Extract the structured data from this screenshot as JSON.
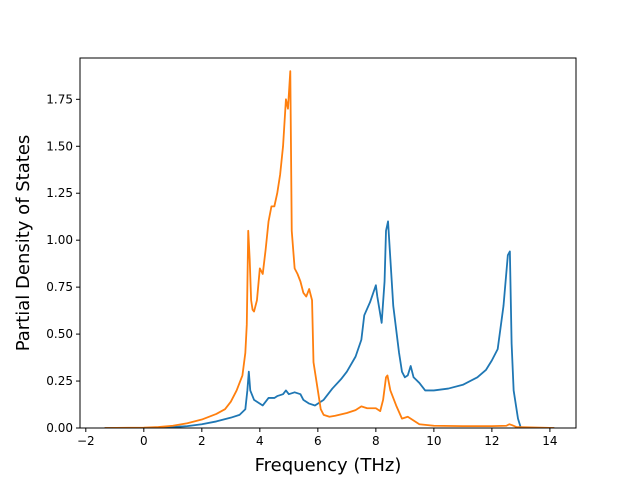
{
  "chart_data": {
    "type": "line",
    "title": "",
    "xlabel": "Frequency (THz)",
    "ylabel": "Partial Density of States",
    "xlim": [
      -2.2,
      14.9
    ],
    "ylim": [
      0,
      1.97
    ],
    "grid": false,
    "xticks": [
      -2,
      0,
      2,
      4,
      6,
      8,
      10,
      12,
      14
    ],
    "xtick_labels": [
      "−2",
      "0",
      "2",
      "4",
      "6",
      "8",
      "10",
      "12",
      "14"
    ],
    "yticks": [
      0,
      0.25,
      0.5,
      0.75,
      1.0,
      1.25,
      1.5,
      1.75
    ],
    "ytick_labels": [
      "0.00",
      "0.25",
      "0.50",
      "0.75",
      "1.00",
      "1.25",
      "1.50",
      "1.75"
    ],
    "series": [
      {
        "color": "#1f77b4",
        "points": [
          [
            -1.35,
            0.0
          ],
          [
            0.0,
            0.0
          ],
          [
            1.0,
            0.005
          ],
          [
            1.5,
            0.01
          ],
          [
            2.0,
            0.02
          ],
          [
            2.5,
            0.035
          ],
          [
            3.0,
            0.055
          ],
          [
            3.3,
            0.07
          ],
          [
            3.5,
            0.1
          ],
          [
            3.57,
            0.2
          ],
          [
            3.62,
            0.3
          ],
          [
            3.67,
            0.2
          ],
          [
            3.8,
            0.15
          ],
          [
            4.0,
            0.13
          ],
          [
            4.1,
            0.12
          ],
          [
            4.2,
            0.14
          ],
          [
            4.3,
            0.16
          ],
          [
            4.5,
            0.16
          ],
          [
            4.6,
            0.17
          ],
          [
            4.8,
            0.18
          ],
          [
            4.9,
            0.2
          ],
          [
            5.0,
            0.18
          ],
          [
            5.2,
            0.19
          ],
          [
            5.4,
            0.18
          ],
          [
            5.5,
            0.15
          ],
          [
            5.7,
            0.13
          ],
          [
            5.9,
            0.12
          ],
          [
            6.0,
            0.13
          ],
          [
            6.2,
            0.15
          ],
          [
            6.5,
            0.21
          ],
          [
            6.8,
            0.26
          ],
          [
            7.0,
            0.3
          ],
          [
            7.3,
            0.38
          ],
          [
            7.5,
            0.47
          ],
          [
            7.6,
            0.6
          ],
          [
            7.8,
            0.67
          ],
          [
            8.0,
            0.76
          ],
          [
            8.05,
            0.7
          ],
          [
            8.2,
            0.56
          ],
          [
            8.3,
            0.78
          ],
          [
            8.35,
            1.05
          ],
          [
            8.42,
            1.1
          ],
          [
            8.5,
            0.9
          ],
          [
            8.6,
            0.65
          ],
          [
            8.8,
            0.4
          ],
          [
            8.9,
            0.3
          ],
          [
            9.0,
            0.27
          ],
          [
            9.1,
            0.28
          ],
          [
            9.2,
            0.33
          ],
          [
            9.3,
            0.27
          ],
          [
            9.5,
            0.24
          ],
          [
            9.7,
            0.2
          ],
          [
            10.0,
            0.2
          ],
          [
            10.5,
            0.21
          ],
          [
            11.0,
            0.23
          ],
          [
            11.5,
            0.27
          ],
          [
            11.8,
            0.31
          ],
          [
            12.0,
            0.36
          ],
          [
            12.2,
            0.42
          ],
          [
            12.4,
            0.65
          ],
          [
            12.55,
            0.92
          ],
          [
            12.62,
            0.94
          ],
          [
            12.68,
            0.45
          ],
          [
            12.75,
            0.2
          ],
          [
            12.9,
            0.05
          ],
          [
            13.0,
            0.0
          ],
          [
            14.15,
            0.0
          ]
        ]
      },
      {
        "color": "#ff7f0e",
        "points": [
          [
            -1.35,
            0.0
          ],
          [
            0.0,
            0.002
          ],
          [
            0.5,
            0.005
          ],
          [
            1.0,
            0.012
          ],
          [
            1.5,
            0.025
          ],
          [
            2.0,
            0.045
          ],
          [
            2.5,
            0.075
          ],
          [
            2.8,
            0.1
          ],
          [
            3.0,
            0.14
          ],
          [
            3.2,
            0.2
          ],
          [
            3.4,
            0.28
          ],
          [
            3.5,
            0.4
          ],
          [
            3.55,
            0.55
          ],
          [
            3.6,
            1.05
          ],
          [
            3.65,
            0.9
          ],
          [
            3.7,
            0.68
          ],
          [
            3.75,
            0.63
          ],
          [
            3.8,
            0.62
          ],
          [
            3.9,
            0.68
          ],
          [
            4.0,
            0.85
          ],
          [
            4.1,
            0.82
          ],
          [
            4.2,
            0.95
          ],
          [
            4.3,
            1.1
          ],
          [
            4.4,
            1.18
          ],
          [
            4.5,
            1.18
          ],
          [
            4.6,
            1.25
          ],
          [
            4.7,
            1.35
          ],
          [
            4.8,
            1.5
          ],
          [
            4.9,
            1.75
          ],
          [
            4.97,
            1.7
          ],
          [
            5.05,
            1.9
          ],
          [
            5.1,
            1.05
          ],
          [
            5.2,
            0.85
          ],
          [
            5.3,
            0.82
          ],
          [
            5.4,
            0.78
          ],
          [
            5.5,
            0.72
          ],
          [
            5.6,
            0.7
          ],
          [
            5.7,
            0.74
          ],
          [
            5.8,
            0.68
          ],
          [
            5.85,
            0.35
          ],
          [
            6.0,
            0.2
          ],
          [
            6.1,
            0.1
          ],
          [
            6.2,
            0.07
          ],
          [
            6.4,
            0.06
          ],
          [
            6.6,
            0.065
          ],
          [
            7.0,
            0.08
          ],
          [
            7.3,
            0.095
          ],
          [
            7.5,
            0.115
          ],
          [
            7.7,
            0.105
          ],
          [
            8.0,
            0.105
          ],
          [
            8.15,
            0.09
          ],
          [
            8.25,
            0.15
          ],
          [
            8.35,
            0.27
          ],
          [
            8.4,
            0.28
          ],
          [
            8.5,
            0.2
          ],
          [
            8.7,
            0.12
          ],
          [
            8.9,
            0.05
          ],
          [
            9.1,
            0.06
          ],
          [
            9.2,
            0.05
          ],
          [
            9.5,
            0.02
          ],
          [
            10.0,
            0.012
          ],
          [
            11.0,
            0.01
          ],
          [
            12.0,
            0.01
          ],
          [
            12.5,
            0.012
          ],
          [
            12.6,
            0.02
          ],
          [
            12.7,
            0.015
          ],
          [
            12.85,
            0.005
          ],
          [
            14.15,
            0.0
          ]
        ]
      }
    ]
  }
}
